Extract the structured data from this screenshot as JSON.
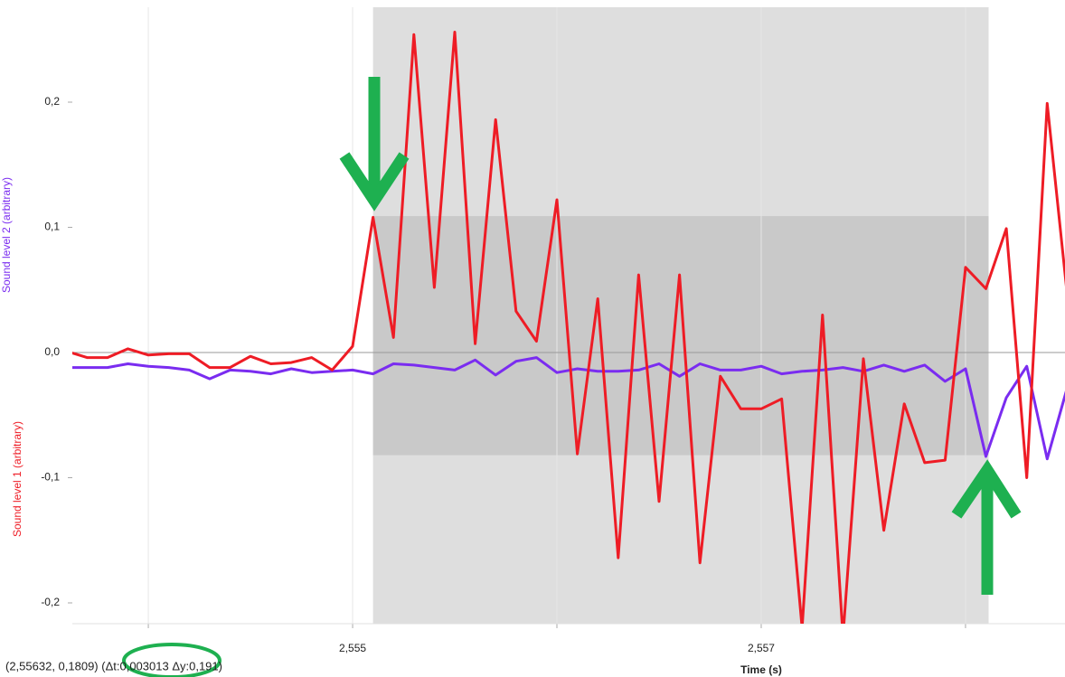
{
  "chart_data": {
    "type": "line",
    "x_label": "Time (s)",
    "y_labels": [
      {
        "text": "Sound level 2 (arbitrary)",
        "color": "#7a2cf0"
      },
      {
        "text": "Sound level 1 (arbitrary)",
        "color": "#ee1c25"
      }
    ],
    "status": "(2,55632, 0,1809) (Δt:0,003013 Δy:0,191)",
    "x": [
      2.5536,
      2.5537,
      2.5538,
      2.5539,
      2.554,
      2.5541,
      2.5542,
      2.5543,
      2.5544,
      2.5545,
      2.5546,
      2.5547,
      2.5548,
      2.5549,
      2.555,
      2.5551,
      2.5552,
      2.5553,
      2.5554,
      2.5555,
      2.5556,
      2.5557,
      2.5558,
      2.5559,
      2.556,
      2.5561,
      2.5562,
      2.5563,
      2.5564,
      2.5565,
      2.5566,
      2.5567,
      2.5568,
      2.5569,
      2.557,
      2.5571,
      2.5572,
      2.5573,
      2.5574,
      2.5575,
      2.5576,
      2.5577,
      2.5578,
      2.5579,
      2.558,
      2.5581,
      2.5582,
      2.5583,
      2.5584,
      2.5585
    ],
    "series": [
      {
        "name": "Sound level 1",
        "color": "#ee1c25",
        "values": [
          0.001,
          -0.004,
          -0.004,
          0.003,
          -0.002,
          -0.001,
          -0.001,
          -0.012,
          -0.012,
          -0.003,
          -0.009,
          -0.008,
          -0.004,
          -0.014,
          0.005,
          0.108,
          0.012,
          0.254,
          0.052,
          0.256,
          0.007,
          0.186,
          0.033,
          0.009,
          0.122,
          -0.081,
          0.043,
          -0.164,
          0.062,
          -0.119,
          0.062,
          -0.168,
          -0.019,
          -0.045,
          -0.045,
          -0.037,
          -0.22,
          0.03,
          -0.227,
          -0.005,
          -0.142,
          -0.041,
          -0.088,
          -0.086,
          0.068,
          0.051,
          0.099,
          -0.1,
          0.199,
          0.043
        ]
      },
      {
        "name": "Sound level 2",
        "color": "#7a2cf0",
        "values": [
          -0.012,
          -0.012,
          -0.012,
          -0.009,
          -0.011,
          -0.012,
          -0.014,
          -0.021,
          -0.014,
          -0.015,
          -0.017,
          -0.013,
          -0.016,
          -0.015,
          -0.014,
          -0.017,
          -0.009,
          -0.01,
          -0.012,
          -0.014,
          -0.006,
          -0.018,
          -0.007,
          -0.004,
          -0.016,
          -0.013,
          -0.015,
          -0.015,
          -0.014,
          -0.009,
          -0.019,
          -0.009,
          -0.014,
          -0.014,
          -0.011,
          -0.017,
          -0.015,
          -0.014,
          -0.012,
          -0.015,
          -0.01,
          -0.015,
          -0.01,
          -0.023,
          -0.013,
          -0.083,
          -0.036,
          -0.011,
          -0.085,
          -0.027
        ]
      }
    ],
    "selection": {
      "x": [
        2.5551,
        2.558113
      ],
      "y": [
        -0.082,
        0.109
      ]
    },
    "xlim": [
      2.553628,
      2.558487
    ],
    "ylim": [
      -0.2166,
      0.2816
    ],
    "xticks": [
      {
        "value": 2.554,
        "label": null
      },
      {
        "value": 2.555,
        "label": "2,555"
      },
      {
        "value": 2.556,
        "label": null
      },
      {
        "value": 2.557,
        "label": "2,557"
      },
      {
        "value": 2.558,
        "label": null
      }
    ],
    "yticks": [
      {
        "value": -0.2,
        "label": "-0,2"
      },
      {
        "value": -0.1,
        "label": "-0,1"
      },
      {
        "value": 0,
        "label": "0,0"
      },
      {
        "value": 0.1,
        "label": "0,1"
      },
      {
        "value": 0.2,
        "label": "0,2"
      }
    ],
    "grid": true
  }
}
